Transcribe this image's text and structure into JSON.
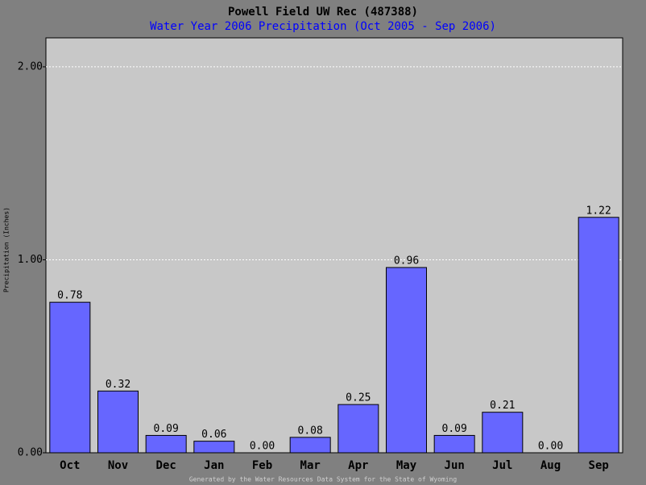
{
  "chart_data": {
    "type": "bar",
    "title": "Powell Field UW Rec (487388)",
    "subtitle": "Water Year 2006 Precipitation (Oct 2005 - Sep 2006)",
    "y_label": "Precipitation (Inches)",
    "footer": "Generated by the Water Resources Data System for the State of Wyoming",
    "categories": [
      "Oct",
      "Nov",
      "Dec",
      "Jan",
      "Feb",
      "Mar",
      "Apr",
      "May",
      "Jun",
      "Jul",
      "Aug",
      "Sep"
    ],
    "values": [
      0.78,
      0.32,
      0.09,
      0.06,
      0,
      0.08,
      0.25,
      0.96,
      0.09,
      0.21,
      0,
      1.22
    ],
    "value_labels": [
      "0.78",
      "0.32",
      "0.09",
      "0.06",
      "0.00",
      "0.08",
      "0.25",
      "0.96",
      "0.09",
      "0.21",
      "0.00",
      "1.22"
    ],
    "color": "#6666ff",
    "ylim": [
      0,
      2.15
    ],
    "yticks": [
      {
        "value": 0,
        "label": "0.00"
      },
      {
        "value": 1,
        "label": "1.00"
      },
      {
        "value": 2,
        "label": "2.00"
      }
    ],
    "grid": true
  }
}
